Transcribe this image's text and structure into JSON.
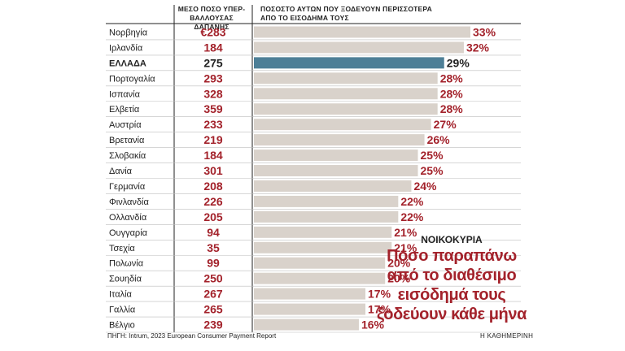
{
  "headers": {
    "avg_line1": "ΜΕΣΟ ΠΟΣΟ ΥΠΕΡ-",
    "avg_line2": "ΒΑΛΛΟΥΣΑΣ ΔΑΠΑΝΗΣ",
    "pct_line1": "ΠΟΣΟΣΤΟ ΑΥΤΩΝ ΠΟΥ ΞΟΔΕΥΟΥΝ ΠΕΡΙΣΣΟΤΕΡΑ",
    "pct_line2": "ΑΠΟ ΤΟ ΕΙΣΟΔΗΜΑ ΤΟΥΣ"
  },
  "kicker": "ΝΟΙΚΟΚΥΡΙΑ",
  "headline": [
    "Πόσο παραπάνω",
    "από το διαθέσιμο",
    "εισόδημά τους",
    "ξοδεύουν κάθε μήνα"
  ],
  "source": "ΠΗΓΗ: Intrum, 2023 European Consumer Payment Report",
  "brand": "Η ΚΑΘΗΜΕΡΙΝΗ",
  "colors": {
    "bar": "#d9d2cb",
    "highlight_bar": "#4d7f97",
    "accent_text": "#a3222b",
    "text": "#222222"
  },
  "chart_data": {
    "type": "bar",
    "orientation": "horizontal",
    "categories": [
      "Νορβηγία",
      "Ιρλανδία",
      "ΕΛΛΑΔΑ",
      "Πορτογαλία",
      "Ισπανία",
      "Ελβετία",
      "Αυστρία",
      "Βρετανία",
      "Σλοβακία",
      "Δανία",
      "Γερμανία",
      "Φινλανδία",
      "Ολλανδία",
      "Ουγγαρία",
      "Τσεχία",
      "Πολωνία",
      "Σουηδία",
      "Ιταλία",
      "Γαλλία",
      "Βέλγιο"
    ],
    "avg_overspend_labels": [
      "€283",
      "184",
      "275",
      "293",
      "328",
      "359",
      "233",
      "219",
      "184",
      "301",
      "208",
      "226",
      "205",
      "94",
      "35",
      "99",
      "250",
      "267",
      "265",
      "239"
    ],
    "values": [
      33,
      32,
      29,
      28,
      28,
      28,
      27,
      26,
      25,
      25,
      24,
      22,
      22,
      21,
      21,
      20,
      20,
      17,
      17,
      16
    ],
    "value_labels": [
      "33%",
      "32%",
      "29%",
      "28%",
      "28%",
      "28%",
      "27%",
      "26%",
      "25%",
      "25%",
      "24%",
      "22%",
      "22%",
      "21%",
      "21%",
      "20%",
      "20%",
      "17%",
      "17%",
      "16%"
    ],
    "highlight_index": 2,
    "xlim": [
      0,
      33
    ]
  }
}
